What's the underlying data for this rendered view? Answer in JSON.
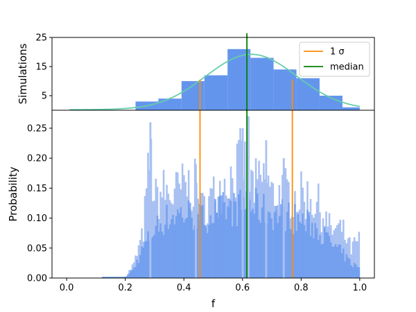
{
  "colors": {
    "hist": "#6495ED",
    "hist_light": "#A9C1F2",
    "fit_curve": "#66CDAA",
    "sigma": "#FF8C00",
    "median": "#008000"
  },
  "chart_data": [
    {
      "type": "bar",
      "panel": "top",
      "ylabel": "Simulations",
      "xlim": [
        -0.05,
        1.05
      ],
      "ylim": [
        0,
        25
      ],
      "yticks": [
        5,
        15,
        25
      ],
      "bins": [
        {
          "x0": 0.235,
          "x1": 0.313,
          "value": 3
        },
        {
          "x0": 0.313,
          "x1": 0.392,
          "value": 4
        },
        {
          "x0": 0.392,
          "x1": 0.47,
          "value": 10
        },
        {
          "x0": 0.47,
          "x1": 0.549,
          "value": 12
        },
        {
          "x0": 0.549,
          "x1": 0.627,
          "value": 21
        },
        {
          "x0": 0.627,
          "x1": 0.706,
          "value": 18
        },
        {
          "x0": 0.706,
          "x1": 0.784,
          "value": 14
        },
        {
          "x0": 0.784,
          "x1": 0.863,
          "value": 11
        },
        {
          "x0": 0.863,
          "x1": 0.941,
          "value": 5
        },
        {
          "x0": 0.941,
          "x1": 1.0,
          "value": 1
        }
      ],
      "fit": {
        "mu": 0.63,
        "sigma": 0.155,
        "peak": 19,
        "xmin": 0.01,
        "xmax": 1.0
      },
      "legend": {
        "placement": "upper-right",
        "entries": [
          {
            "label": "1 σ",
            "color": "#FF8C00"
          },
          {
            "label": "median",
            "color": "#008000"
          }
        ]
      }
    },
    {
      "type": "bar",
      "panel": "bottom",
      "xlabel": "f",
      "ylabel": "Probability",
      "xlim": [
        -0.05,
        1.05
      ],
      "ylim": [
        0,
        0.28
      ],
      "xticks": [
        "0.0",
        "0.2",
        "0.4",
        "0.6",
        "0.8",
        "1.0"
      ],
      "yticks": [
        "0.00",
        "0.05",
        "0.10",
        "0.15",
        "0.20",
        "0.25"
      ],
      "envelope_light": [
        {
          "x": 0.12,
          "y": 0.0
        },
        {
          "x": 0.2,
          "y": 0.002
        },
        {
          "x": 0.23,
          "y": 0.03
        },
        {
          "x": 0.26,
          "y": 0.09
        },
        {
          "x": 0.285,
          "y": 0.26
        },
        {
          "x": 0.3,
          "y": 0.16
        },
        {
          "x": 0.33,
          "y": 0.18
        },
        {
          "x": 0.36,
          "y": 0.17
        },
        {
          "x": 0.4,
          "y": 0.19
        },
        {
          "x": 0.44,
          "y": 0.19
        },
        {
          "x": 0.46,
          "y": 0.14
        },
        {
          "x": 0.5,
          "y": 0.17
        },
        {
          "x": 0.54,
          "y": 0.2
        },
        {
          "x": 0.57,
          "y": 0.21
        },
        {
          "x": 0.6,
          "y": 0.25
        },
        {
          "x": 0.62,
          "y": 0.2
        },
        {
          "x": 0.65,
          "y": 0.19
        },
        {
          "x": 0.68,
          "y": 0.21
        },
        {
          "x": 0.7,
          "y": 0.17
        },
        {
          "x": 0.74,
          "y": 0.18
        },
        {
          "x": 0.78,
          "y": 0.17
        },
        {
          "x": 0.82,
          "y": 0.17
        },
        {
          "x": 0.86,
          "y": 0.15
        },
        {
          "x": 0.9,
          "y": 0.1
        },
        {
          "x": 0.94,
          "y": 0.1
        },
        {
          "x": 0.97,
          "y": 0.06
        },
        {
          "x": 1.0,
          "y": 0.08
        }
      ],
      "envelope_dark": [
        {
          "x": 0.12,
          "y": 0.0
        },
        {
          "x": 0.2,
          "y": 0.001
        },
        {
          "x": 0.23,
          "y": 0.02
        },
        {
          "x": 0.26,
          "y": 0.06
        },
        {
          "x": 0.3,
          "y": 0.1
        },
        {
          "x": 0.34,
          "y": 0.12
        },
        {
          "x": 0.38,
          "y": 0.13
        },
        {
          "x": 0.42,
          "y": 0.13
        },
        {
          "x": 0.46,
          "y": 0.12
        },
        {
          "x": 0.5,
          "y": 0.13
        },
        {
          "x": 0.54,
          "y": 0.14
        },
        {
          "x": 0.58,
          "y": 0.14
        },
        {
          "x": 0.62,
          "y": 0.15
        },
        {
          "x": 0.66,
          "y": 0.14
        },
        {
          "x": 0.7,
          "y": 0.13
        },
        {
          "x": 0.74,
          "y": 0.13
        },
        {
          "x": 0.78,
          "y": 0.12
        },
        {
          "x": 0.82,
          "y": 0.11
        },
        {
          "x": 0.86,
          "y": 0.1
        },
        {
          "x": 0.9,
          "y": 0.07
        },
        {
          "x": 0.94,
          "y": 0.05
        },
        {
          "x": 0.97,
          "y": 0.03
        },
        {
          "x": 1.0,
          "y": 0.02
        }
      ],
      "spikes": [
        {
          "x": 0.285,
          "y": 0.26
        },
        {
          "x": 0.44,
          "y": 0.19
        },
        {
          "x": 0.6,
          "y": 0.25
        },
        {
          "x": 0.62,
          "y": 0.27
        },
        {
          "x": 0.68,
          "y": 0.23
        },
        {
          "x": 0.74,
          "y": 0.2
        }
      ]
    }
  ],
  "reference_lines": {
    "median": 0.615,
    "sigma_low": 0.455,
    "sigma_high": 0.77
  }
}
